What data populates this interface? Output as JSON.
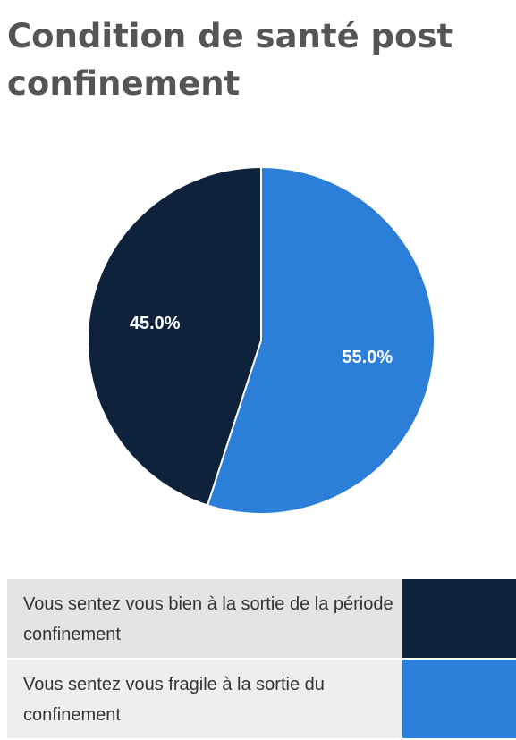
{
  "title": "Condition de santé post confinement",
  "colors": {
    "title": "#555555",
    "slice_1": "#0e223c",
    "slice_2": "#2c7fd9",
    "slice_label": "#ffffff"
  },
  "chart_data": {
    "type": "pie",
    "title": "Condition de santé post confinement",
    "legend_position": "bottom",
    "categories": [
      "Vous sentez vous bien à la sortie de la période confinement",
      "Vous sentez vous fragile à la sortie du confinement"
    ],
    "values": [
      45.0,
      55.0
    ],
    "data_labels": [
      "45.0%",
      "55.0%"
    ],
    "colors": [
      "#0e223c",
      "#2c7fd9"
    ]
  },
  "legend": {
    "items": [
      {
        "label": "Vous sentez vous bien à la sortie de la période confinement",
        "color": "#0e223c"
      },
      {
        "label": "Vous sentez vous fragile à la sortie du confinement",
        "color": "#2c7fd9"
      }
    ]
  }
}
